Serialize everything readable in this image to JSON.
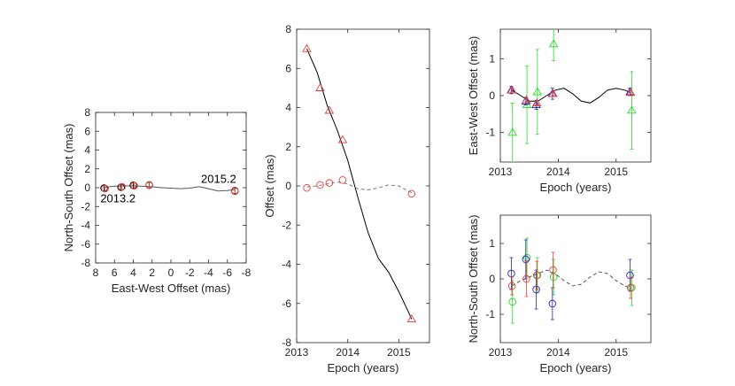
{
  "chart_data": [
    {
      "id": "sky",
      "type": "scatter",
      "xlabel": "East-West Offset (mas)",
      "ylabel": "North-South Offset (mas)",
      "xlim": [
        8,
        -8
      ],
      "ylim": [
        -8,
        8
      ],
      "xticks": [
        8,
        6,
        4,
        2,
        0,
        -2,
        -4,
        -6,
        -8
      ],
      "yticks": [
        -8,
        -6,
        -4,
        -2,
        0,
        2,
        4,
        6,
        8
      ],
      "x_reversed": true,
      "grid": false,
      "annotations": [
        {
          "text": "2013.2",
          "x": 7.5,
          "y": -1.1
        },
        {
          "text": "2015.2",
          "x": -3.2,
          "y": 1.0
        }
      ],
      "model_curve": {
        "x": [
          7.0,
          6.0,
          5.0,
          4.0,
          3.0,
          2.0,
          1.0,
          0.0,
          -1.0,
          -2.0,
          -3.0,
          -4.0,
          -5.0,
          -6.0,
          -6.8
        ],
        "y": [
          0.05,
          0.15,
          0.2,
          0.2,
          0.15,
          0.1,
          0.0,
          -0.05,
          -0.1,
          -0.05,
          0.1,
          -0.1,
          -0.35,
          -0.3,
          -0.2
        ],
        "color": "#555555"
      },
      "series": [
        {
          "marker": "circle",
          "color": "#000000",
          "x": [
            7.1,
            5.3,
            4.0,
            2.3,
            -6.8
          ],
          "y": [
            -0.05,
            0.05,
            0.25,
            0.28,
            -0.35
          ],
          "err": [
            0.3,
            0.3,
            0.3,
            0.3,
            0.3
          ]
        },
        {
          "marker": "circle",
          "color": "#e8413c",
          "x": [
            7.0,
            5.2,
            3.9,
            2.3,
            -6.8
          ],
          "y": [
            -0.1,
            0.1,
            0.2,
            0.25,
            -0.3
          ],
          "err": [
            0.3,
            0.3,
            0.3,
            0.3,
            0.3
          ]
        }
      ]
    },
    {
      "id": "offset-vs-epoch",
      "type": "line",
      "xlabel": "Epoch (years)",
      "ylabel": "Offset (mas)",
      "xlim": [
        2013,
        2015.6
      ],
      "ylim": [
        -8,
        8
      ],
      "xticks": [
        2013,
        2014,
        2015
      ],
      "yticks": [
        -8,
        -6,
        -4,
        -2,
        0,
        2,
        4,
        6,
        8
      ],
      "grid": false,
      "curves": [
        {
          "style": "solid",
          "color": "#000000",
          "x": [
            2013.2,
            2013.4,
            2013.6,
            2013.8,
            2014.0,
            2014.2,
            2014.4,
            2014.6,
            2014.8,
            2015.0,
            2015.2,
            2015.25
          ],
          "y": [
            7.0,
            5.8,
            4.1,
            2.8,
            1.3,
            -0.6,
            -2.4,
            -3.7,
            -4.4,
            -5.4,
            -6.5,
            -6.8
          ]
        },
        {
          "style": "dashed",
          "color": "#777777",
          "x": [
            2013.2,
            2013.4,
            2013.6,
            2013.8,
            2014.0,
            2014.2,
            2014.4,
            2014.6,
            2014.8,
            2015.0,
            2015.25
          ],
          "y": [
            -0.05,
            0.0,
            0.1,
            0.2,
            0.1,
            -0.15,
            -0.2,
            -0.1,
            0.05,
            0.0,
            -0.35
          ]
        }
      ],
      "series": [
        {
          "marker": "triangle",
          "color": "#e8413c",
          "x": [
            2013.2,
            2013.46,
            2013.64,
            2013.9,
            2015.25
          ],
          "y": [
            7.0,
            5.0,
            3.85,
            2.35,
            -6.8
          ]
        },
        {
          "marker": "circle",
          "color": "#e8413c",
          "x": [
            2013.2,
            2013.46,
            2013.64,
            2013.9,
            2015.25
          ],
          "y": [
            -0.1,
            0.05,
            0.15,
            0.3,
            -0.4
          ]
        }
      ]
    },
    {
      "id": "ew-offset",
      "type": "scatter",
      "xlabel": "Epoch (years)",
      "ylabel": "East-West Offset (mas)",
      "xlim": [
        2013,
        2015.6
      ],
      "ylim": [
        -1.8,
        1.8
      ],
      "xticks": [
        2013,
        2014,
        2015
      ],
      "yticks": [
        -1,
        0,
        1
      ],
      "grid": false,
      "model_curve": {
        "x": [
          2013.2,
          2013.35,
          2013.5,
          2013.65,
          2013.8,
          2013.95,
          2014.1,
          2014.25,
          2014.4,
          2014.55,
          2014.7,
          2014.85,
          2015.0,
          2015.15,
          2015.25
        ],
        "y": [
          0.15,
          0.0,
          -0.15,
          -0.15,
          0.0,
          0.15,
          0.2,
          0.05,
          -0.15,
          -0.2,
          -0.05,
          0.15,
          0.2,
          0.15,
          0.08
        ],
        "color": "#000000",
        "style": "solid"
      },
      "series": [
        {
          "marker": "triangle",
          "color": "#22dd22",
          "x": [
            2013.21,
            2013.46,
            2013.64,
            2013.92,
            2015.27
          ],
          "y": [
            -1.0,
            -0.25,
            0.1,
            1.4,
            -0.4
          ],
          "err": [
            0.8,
            1.05,
            1.15,
            0.45,
            1.05
          ]
        },
        {
          "marker": "triangle",
          "color": "#2222cc",
          "x": [
            2013.19,
            2013.44,
            2013.62,
            2013.9,
            2015.24
          ],
          "y": [
            0.15,
            -0.15,
            -0.25,
            0.05,
            0.1
          ],
          "err": [
            0.1,
            0.1,
            0.12,
            0.15,
            0.1
          ]
        },
        {
          "marker": "triangle",
          "color": "#e8413c",
          "x": [
            2013.2,
            2013.45,
            2013.63,
            2013.91,
            2015.25
          ],
          "y": [
            0.15,
            -0.12,
            -0.2,
            0.05,
            0.08
          ],
          "err": [
            0.05,
            0.05,
            0.05,
            0.05,
            0.05
          ]
        }
      ]
    },
    {
      "id": "ns-offset",
      "type": "scatter",
      "xlabel": "Epoch (years)",
      "ylabel": "North-South Offset (mas)",
      "xlim": [
        2013,
        2015.6
      ],
      "ylim": [
        -1.8,
        1.8
      ],
      "xticks": [
        2013,
        2014,
        2015
      ],
      "yticks": [
        -1,
        0,
        1
      ],
      "grid": false,
      "model_curve": {
        "x": [
          2013.2,
          2013.35,
          2013.5,
          2013.65,
          2013.8,
          2013.95,
          2014.1,
          2014.25,
          2014.4,
          2014.55,
          2014.7,
          2014.85,
          2015.0,
          2015.15,
          2015.25
        ],
        "y": [
          -0.2,
          -0.05,
          0.05,
          0.15,
          0.25,
          0.15,
          -0.05,
          -0.2,
          -0.15,
          0.05,
          0.2,
          0.15,
          -0.05,
          -0.2,
          -0.25
        ],
        "color": "#555555",
        "style": "dashed"
      },
      "series": [
        {
          "marker": "circle",
          "color": "#22dd22",
          "x": [
            2013.21,
            2013.46,
            2013.64,
            2013.92,
            2015.27
          ],
          "y": [
            -0.65,
            0.6,
            0.1,
            0.05,
            -0.25
          ],
          "err": [
            0.6,
            0.55,
            0.5,
            0.5,
            0.5
          ]
        },
        {
          "marker": "circle",
          "color": "#2222cc",
          "x": [
            2013.19,
            2013.44,
            2013.62,
            2013.9,
            2015.24
          ],
          "y": [
            0.15,
            0.55,
            -0.3,
            -0.7,
            0.1
          ],
          "err": [
            0.45,
            0.55,
            0.55,
            0.45,
            0.45
          ]
        },
        {
          "marker": "circle",
          "color": "#e8413c",
          "x": [
            2013.2,
            2013.45,
            2013.63,
            2013.91,
            2015.25
          ],
          "y": [
            -0.2,
            0.0,
            0.1,
            0.25,
            -0.25
          ],
          "err": [
            0.25,
            0.5,
            0.4,
            0.5,
            0.3
          ]
        }
      ]
    }
  ]
}
